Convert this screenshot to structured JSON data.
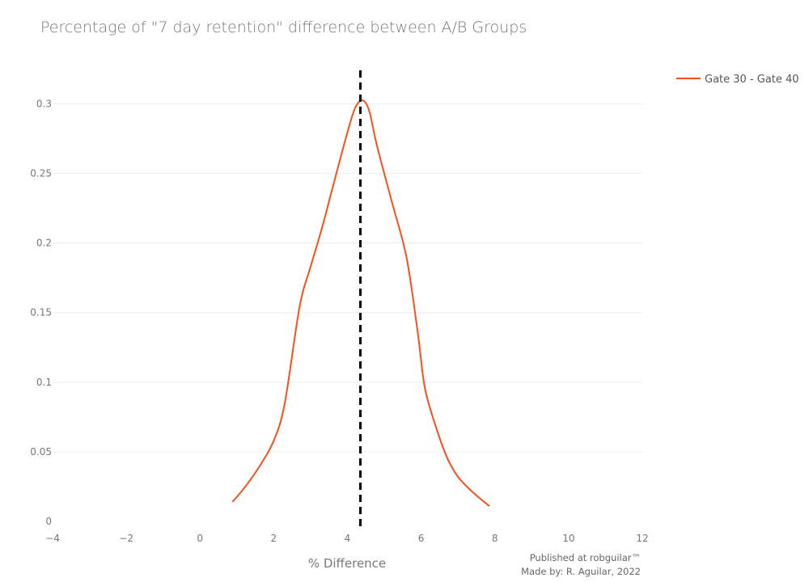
{
  "chart_data": {
    "type": "line",
    "title": "Percentage of \"7 day retention\" difference between A/B Groups",
    "xlabel": "% Difference",
    "ylabel": "",
    "xlim": [
      -4,
      12
    ],
    "ylim": [
      0,
      0.32
    ],
    "x_ticks": [
      -4,
      -2,
      0,
      2,
      4,
      6,
      8,
      10,
      12
    ],
    "x_tick_labels": [
      "−4",
      "−2",
      "0",
      "2",
      "4",
      "6",
      "8",
      "10",
      "12"
    ],
    "y_ticks": [
      0,
      0.05,
      0.1,
      0.15,
      0.2,
      0.25,
      0.3
    ],
    "y_tick_labels": [
      "0",
      "0.05",
      "0.1",
      "0.15",
      "0.2",
      "0.25",
      "0.3"
    ],
    "grid": true,
    "legend_position": "top-right",
    "series": [
      {
        "name": "Gate 30 - Gate 40",
        "color": "#f4511e",
        "x": [
          0.88,
          1.2,
          1.6,
          2.0,
          2.3,
          2.7,
          3.0,
          3.3,
          3.6,
          3.9,
          4.15,
          4.3,
          4.45,
          4.6,
          4.8,
          5.2,
          5.6,
          5.9,
          6.1,
          6.4,
          6.7,
          7.0,
          7.4,
          7.85
        ],
        "y": [
          0.014,
          0.024,
          0.039,
          0.058,
          0.085,
          0.154,
          0.183,
          0.21,
          0.24,
          0.27,
          0.293,
          0.301,
          0.302,
          0.294,
          0.27,
          0.23,
          0.19,
          0.137,
          0.096,
          0.068,
          0.046,
          0.032,
          0.021,
          0.011
        ]
      }
    ],
    "reference_lines": [
      {
        "type": "vertical",
        "x": 4.35,
        "style": "dashed",
        "color": "#000000"
      }
    ],
    "annotations": [
      "Published at robguilar™",
      "Made by:  R. Aguilar, 2022"
    ]
  }
}
